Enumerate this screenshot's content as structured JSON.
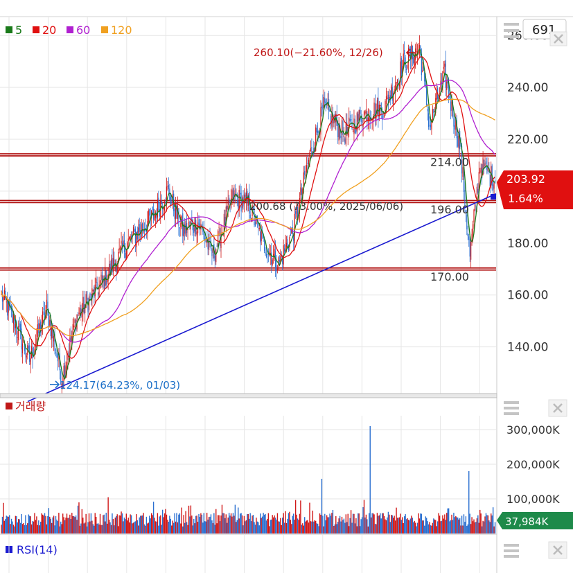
{
  "header": {
    "legend": [
      {
        "label": "5",
        "color": "#1a7a1a"
      },
      {
        "label": "20",
        "color": "#e01010"
      },
      {
        "label": "60",
        "color": "#b020d0"
      },
      {
        "label": "120",
        "color": "#f0a020"
      }
    ],
    "period_value": "691"
  },
  "price_panel": {
    "y_ticks": [
      "260.00",
      "240.00",
      "220.00",
      "200.00",
      "180.00",
      "160.00",
      "140.00"
    ],
    "y_tick_values": [
      260,
      240,
      220,
      200,
      180,
      160,
      140
    ],
    "ylim": [
      122,
      267
    ],
    "high_annotation": "260.10(−21.60%, 12/26)",
    "low_annotation": "124.17(64.23%, 01/03)",
    "mid_annotation": "200.68 (73.00%, 2025/06/06)",
    "level_labels": [
      "214.00",
      "196.00",
      "170.00"
    ],
    "levels": [
      214,
      196,
      170
    ],
    "current_price": "203.92",
    "current_change": "1.64%",
    "trendline": {
      "start": [
        0,
        120
      ],
      "end": [
        1,
        199
      ]
    }
  },
  "volume_panel": {
    "title": "거래량",
    "y_ticks": [
      "300,000K",
      "200,000K",
      "100,000K"
    ],
    "y_tick_values": [
      300000,
      200000,
      100000
    ],
    "ymax": 340000,
    "current_volume": "37,984K"
  },
  "rsi_panel": {
    "title": "RSI(14)"
  },
  "colors": {
    "up": "#d01818",
    "down": "#2a6fd0",
    "ma5": "#1a7a1a",
    "ma20": "#e01010",
    "ma60": "#b020d0",
    "ma120": "#f0a020",
    "level_line": "#b01010",
    "trendline": "#1a1ad0",
    "price_badge": "#e01010",
    "volume_badge": "#1e8a4a"
  },
  "chart_data": {
    "type": "line",
    "title": "",
    "series_count": 4,
    "anchor_points": [
      {
        "x": 0,
        "y": 160
      },
      {
        "x": 12,
        "y": 150
      },
      {
        "x": 28,
        "y": 135
      },
      {
        "x": 45,
        "y": 155
      },
      {
        "x": 60,
        "y": 128
      },
      {
        "x": 75,
        "y": 152
      },
      {
        "x": 100,
        "y": 165
      },
      {
        "x": 125,
        "y": 180
      },
      {
        "x": 150,
        "y": 190
      },
      {
        "x": 165,
        "y": 200
      },
      {
        "x": 180,
        "y": 185
      },
      {
        "x": 195,
        "y": 188
      },
      {
        "x": 210,
        "y": 175
      },
      {
        "x": 230,
        "y": 198
      },
      {
        "x": 245,
        "y": 195
      },
      {
        "x": 260,
        "y": 180
      },
      {
        "x": 275,
        "y": 172
      },
      {
        "x": 290,
        "y": 185
      },
      {
        "x": 305,
        "y": 212
      },
      {
        "x": 320,
        "y": 232
      },
      {
        "x": 340,
        "y": 222
      },
      {
        "x": 360,
        "y": 230
      },
      {
        "x": 380,
        "y": 232
      },
      {
        "x": 400,
        "y": 250
      },
      {
        "x": 415,
        "y": 255
      },
      {
        "x": 425,
        "y": 225
      },
      {
        "x": 440,
        "y": 245
      },
      {
        "x": 455,
        "y": 218
      },
      {
        "x": 465,
        "y": 175
      },
      {
        "x": 475,
        "y": 210
      },
      {
        "x": 490,
        "y": 204
      }
    ],
    "volume_peaks": [
      {
        "x": 318,
        "value": 158000
      },
      {
        "x": 366,
        "value": 310000
      },
      {
        "x": 464,
        "value": 180000
      }
    ]
  }
}
